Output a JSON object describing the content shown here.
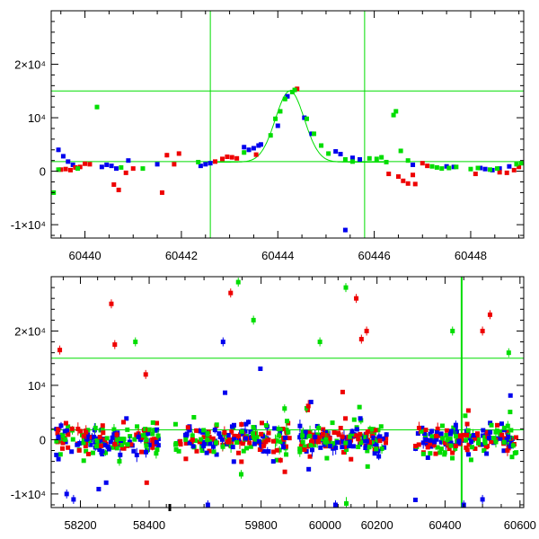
{
  "chart_data": [
    {
      "type": "scatter",
      "panel": "top",
      "title": "",
      "xlabel": "",
      "ylabel": "",
      "xlim": [
        60439.3,
        60449.1
      ],
      "ylim": [
        -12500,
        30000
      ],
      "x_ticks": [
        60440,
        60442,
        60444,
        60446,
        60448
      ],
      "x_tick_labels": [
        "60440",
        "60442",
        "60444",
        "60446",
        "60448"
      ],
      "y_ticks": [
        -10000,
        0,
        10000,
        20000
      ],
      "y_tick_labels": [
        "-1×10⁴",
        "0",
        "10⁴",
        "2×10⁴"
      ],
      "hlines": [
        1800,
        15000
      ],
      "vlines": [
        60442.6,
        60445.8
      ],
      "model_curve": {
        "baseline": 1700,
        "peak": 15000,
        "t0": 60444.25,
        "width": 0.3
      },
      "series": [
        {
          "color": "#0000ee",
          "points": [
            [
              60439.45,
              4000
            ],
            [
              60439.55,
              2800
            ],
            [
              60439.65,
              1800
            ],
            [
              60439.75,
              1200
            ],
            [
              60440.35,
              800
            ],
            [
              60440.45,
              1200
            ],
            [
              60440.55,
              1000
            ],
            [
              60440.65,
              500
            ],
            [
              60440.9,
              2000
            ],
            [
              60441.5,
              1300
            ],
            [
              60442.4,
              1000
            ],
            [
              60442.5,
              1300
            ],
            [
              60442.6,
              1500
            ],
            [
              60443.3,
              4500
            ],
            [
              60443.4,
              4000
            ],
            [
              60443.5,
              4300
            ],
            [
              60443.6,
              4800
            ],
            [
              60443.65,
              5000
            ],
            [
              60444.0,
              8500
            ],
            [
              60444.2,
              14000
            ],
            [
              60444.55,
              10000
            ],
            [
              60444.7,
              7000
            ],
            [
              60445.2,
              3700
            ],
            [
              60445.3,
              3200
            ],
            [
              60445.4,
              -11000
            ],
            [
              60445.55,
              2500
            ],
            [
              60445.7,
              2200
            ],
            [
              60446.8,
              1200
            ],
            [
              60447.5,
              900
            ],
            [
              60447.65,
              800
            ],
            [
              60448.2,
              600
            ],
            [
              60448.3,
              400
            ],
            [
              60448.45,
              200
            ],
            [
              60448.6,
              500
            ],
            [
              60448.8,
              900
            ]
          ]
        },
        {
          "color": "#ee0000",
          "points": [
            [
              60439.5,
              300
            ],
            [
              60439.6,
              400
            ],
            [
              60439.7,
              200
            ],
            [
              60439.8,
              700
            ],
            [
              60439.9,
              800
            ],
            [
              60440.0,
              1400
            ],
            [
              60440.1,
              1300
            ],
            [
              60440.6,
              -2500
            ],
            [
              60440.7,
              -3500
            ],
            [
              60440.85,
              -300
            ],
            [
              60441.0,
              500
            ],
            [
              60441.6,
              -4000
            ],
            [
              60441.7,
              3000
            ],
            [
              60441.85,
              1300
            ],
            [
              60441.95,
              3300
            ],
            [
              60442.7,
              1800
            ],
            [
              60442.85,
              2300
            ],
            [
              60442.95,
              2700
            ],
            [
              60443.05,
              2600
            ],
            [
              60443.15,
              2400
            ],
            [
              60443.55,
              3100
            ],
            [
              60444.4,
              15400
            ],
            [
              60446.3,
              -500
            ],
            [
              60446.5,
              -1000
            ],
            [
              60446.6,
              -1800
            ],
            [
              60446.7,
              -2300
            ],
            [
              60446.8,
              -700
            ],
            [
              60446.85,
              -2400
            ],
            [
              60447.0,
              1500
            ],
            [
              60447.1,
              1000
            ],
            [
              60448.1,
              -500
            ],
            [
              60448.6,
              -200
            ],
            [
              60448.75,
              -300
            ],
            [
              60448.9,
              200
            ],
            [
              60449.0,
              800
            ]
          ]
        },
        {
          "color": "#00dd00",
          "points": [
            [
              60439.35,
              -4000
            ],
            [
              60439.45,
              300
            ],
            [
              60439.85,
              500
            ],
            [
              60440.25,
              12000
            ],
            [
              60440.75,
              700
            ],
            [
              60441.2,
              500
            ],
            [
              60442.35,
              1700
            ],
            [
              60443.3,
              3500
            ],
            [
              60443.85,
              6700
            ],
            [
              60443.95,
              9800
            ],
            [
              60444.05,
              11200
            ],
            [
              60444.15,
              13500
            ],
            [
              60444.3,
              14800
            ],
            [
              60444.35,
              15200
            ],
            [
              60444.6,
              9800
            ],
            [
              60444.75,
              7000
            ],
            [
              60444.9,
              4800
            ],
            [
              60445.05,
              3300
            ],
            [
              60445.4,
              2200
            ],
            [
              60445.55,
              1800
            ],
            [
              60445.9,
              2400
            ],
            [
              60446.05,
              2300
            ],
            [
              60446.15,
              2600
            ],
            [
              60446.25,
              1700
            ],
            [
              60446.4,
              10500
            ],
            [
              60446.45,
              11200
            ],
            [
              60446.55,
              3800
            ],
            [
              60446.7,
              2000
            ],
            [
              60447.2,
              900
            ],
            [
              60447.3,
              700
            ],
            [
              60447.4,
              500
            ],
            [
              60447.55,
              600
            ],
            [
              60447.7,
              800
            ],
            [
              60448.0,
              400
            ],
            [
              60448.15,
              600
            ],
            [
              60448.4,
              300
            ],
            [
              60448.55,
              500
            ],
            [
              60448.95,
              1300
            ],
            [
              60449.05,
              1500
            ]
          ]
        }
      ]
    },
    {
      "type": "scatter",
      "panel": "bottom",
      "title": "",
      "xlabel": "",
      "ylabel": "",
      "ylim": [
        -12500,
        30000
      ],
      "segments": [
        {
          "xlim": [
            58115,
            58460
          ],
          "x_ticks": [
            58200,
            58400
          ],
          "x_tick_labels": [
            "58200",
            "58400"
          ],
          "data_range": [
            58130,
            58430
          ]
        },
        {
          "xlim": [
            59560,
            59900
          ],
          "x_ticks": [
            59800
          ],
          "x_tick_labels": [
            "59800"
          ],
          "data_range": [
            59575,
            59875
          ]
        },
        {
          "xlim": [
            59900,
            60260
          ],
          "x_ticks": [
            60000,
            60200
          ],
          "x_tick_labels": [
            "60000",
            "60200"
          ],
          "data_range": [
            59900,
            60240
          ]
        },
        {
          "xlim": [
            60260,
            60610
          ],
          "x_ticks": [
            60400,
            60600
          ],
          "x_tick_labels": [
            "60400",
            "60600"
          ],
          "data_range": [
            60320,
            60590
          ]
        }
      ],
      "y_ticks": [
        -10000,
        0,
        10000,
        20000
      ],
      "y_tick_labels": [
        "-1×10⁴",
        "0",
        "10⁴",
        "2×10⁴"
      ],
      "hlines": [
        1800,
        15000
      ],
      "vlines": [
        60444.3
      ],
      "colors": [
        "#0000ee",
        "#ee0000",
        "#00dd00"
      ],
      "outliers": [
        {
          "x": 58140,
          "y": 16500,
          "color": "#ee0000"
        },
        {
          "x": 58290,
          "y": 25000,
          "color": "#ee0000"
        },
        {
          "x": 58300,
          "y": 17500,
          "color": "#ee0000"
        },
        {
          "x": 58360,
          "y": 18000,
          "color": "#00dd00"
        },
        {
          "x": 58390,
          "y": 12000,
          "color": "#ee0000"
        },
        {
          "x": 58160,
          "y": -10000,
          "color": "#0000ee"
        },
        {
          "x": 58180,
          "y": -11000,
          "color": "#0000ee"
        },
        {
          "x": 59700,
          "y": 18000,
          "color": "#0000ee"
        },
        {
          "x": 59740,
          "y": 29000,
          "color": "#00dd00"
        },
        {
          "x": 59780,
          "y": 22000,
          "color": "#00dd00"
        },
        {
          "x": 59720,
          "y": 27000,
          "color": "#ee0000"
        },
        {
          "x": 59660,
          "y": -12000,
          "color": "#0000ee"
        },
        {
          "x": 59980,
          "y": 18000,
          "color": "#00dd00"
        },
        {
          "x": 60080,
          "y": 28000,
          "color": "#00dd00"
        },
        {
          "x": 60120,
          "y": 26000,
          "color": "#ee0000"
        },
        {
          "x": 60140,
          "y": 18500,
          "color": "#ee0000"
        },
        {
          "x": 60160,
          "y": 20000,
          "color": "#ee0000"
        },
        {
          "x": 60040,
          "y": -12000,
          "color": "#0000ee"
        },
        {
          "x": 60520,
          "y": 23000,
          "color": "#ee0000"
        },
        {
          "x": 60500,
          "y": 20000,
          "color": "#ee0000"
        },
        {
          "x": 60570,
          "y": 16000,
          "color": "#00dd00"
        },
        {
          "x": 60420,
          "y": 20000,
          "color": "#00dd00"
        },
        {
          "x": 60450,
          "y": -12000,
          "color": "#0000ee"
        },
        {
          "x": 60500,
          "y": -11000,
          "color": "#0000ee"
        }
      ]
    }
  ]
}
